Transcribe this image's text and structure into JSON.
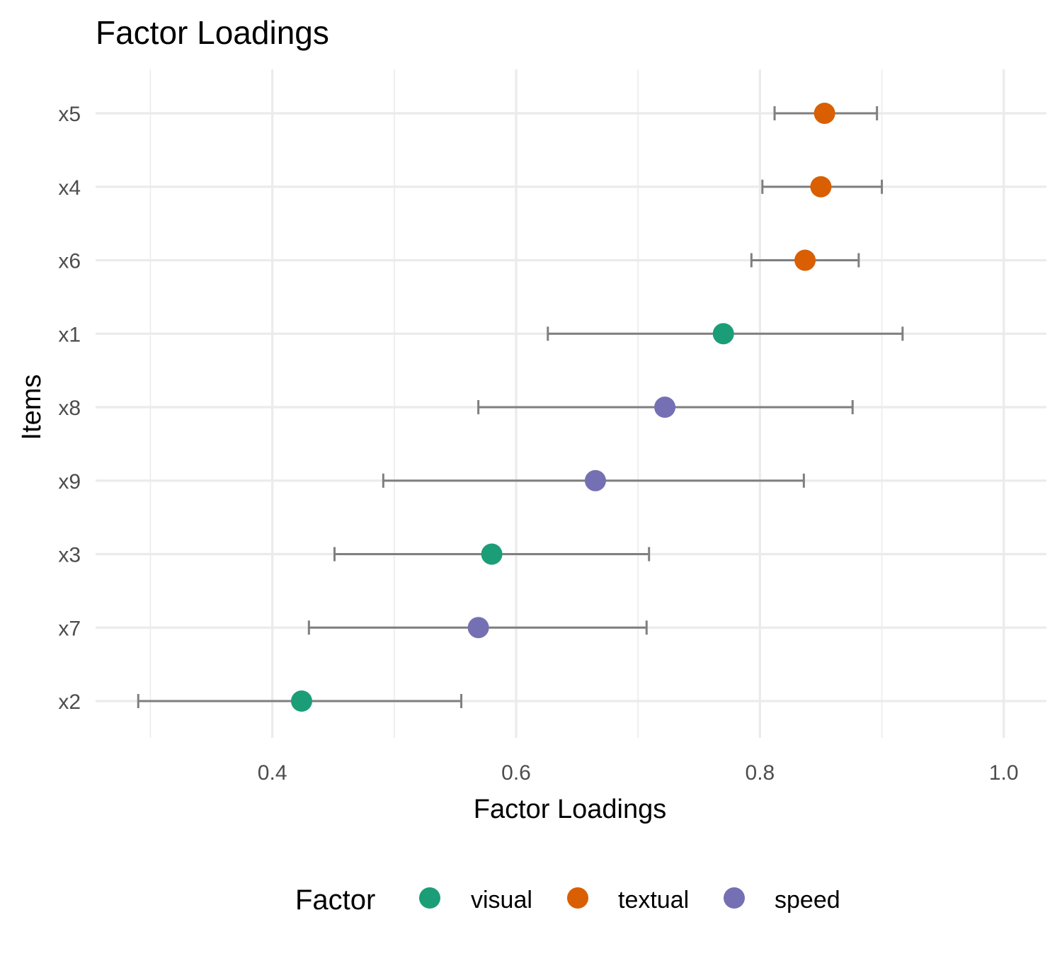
{
  "chart_data": {
    "type": "scatter",
    "title": "Factor Loadings",
    "xlabel": "Factor Loadings",
    "ylabel": "Items",
    "xlim": [
      0.255,
      1.035
    ],
    "x_ticks": [
      0.4,
      0.6,
      0.8,
      1.0
    ],
    "x_tick_labels": [
      "0.4",
      "0.6",
      "0.8",
      "1.0"
    ],
    "grid": true,
    "legend": {
      "title": "Factor",
      "placement": "bottom"
    },
    "series": [
      {
        "name": "visual",
        "color": "#1b9e77"
      },
      {
        "name": "textual",
        "color": "#d95f02"
      },
      {
        "name": "speed",
        "color": "#7570b3"
      }
    ],
    "categories": [
      "x5",
      "x4",
      "x6",
      "x1",
      "x8",
      "x9",
      "x3",
      "x7",
      "x2"
    ],
    "points": [
      {
        "item": "x5",
        "factor": "textual",
        "loading": 0.853,
        "lower": 0.812,
        "upper": 0.896
      },
      {
        "item": "x4",
        "factor": "textual",
        "loading": 0.85,
        "lower": 0.802,
        "upper": 0.9
      },
      {
        "item": "x6",
        "factor": "textual",
        "loading": 0.837,
        "lower": 0.793,
        "upper": 0.881
      },
      {
        "item": "x1",
        "factor": "visual",
        "loading": 0.77,
        "lower": 0.626,
        "upper": 0.917
      },
      {
        "item": "x8",
        "factor": "speed",
        "loading": 0.722,
        "lower": 0.569,
        "upper": 0.876
      },
      {
        "item": "x9",
        "factor": "speed",
        "loading": 0.665,
        "lower": 0.491,
        "upper": 0.836
      },
      {
        "item": "x3",
        "factor": "visual",
        "loading": 0.58,
        "lower": 0.451,
        "upper": 0.709
      },
      {
        "item": "x7",
        "factor": "speed",
        "loading": 0.569,
        "lower": 0.43,
        "upper": 0.707
      },
      {
        "item": "x2",
        "factor": "visual",
        "loading": 0.424,
        "lower": 0.29,
        "upper": 0.555
      }
    ]
  }
}
